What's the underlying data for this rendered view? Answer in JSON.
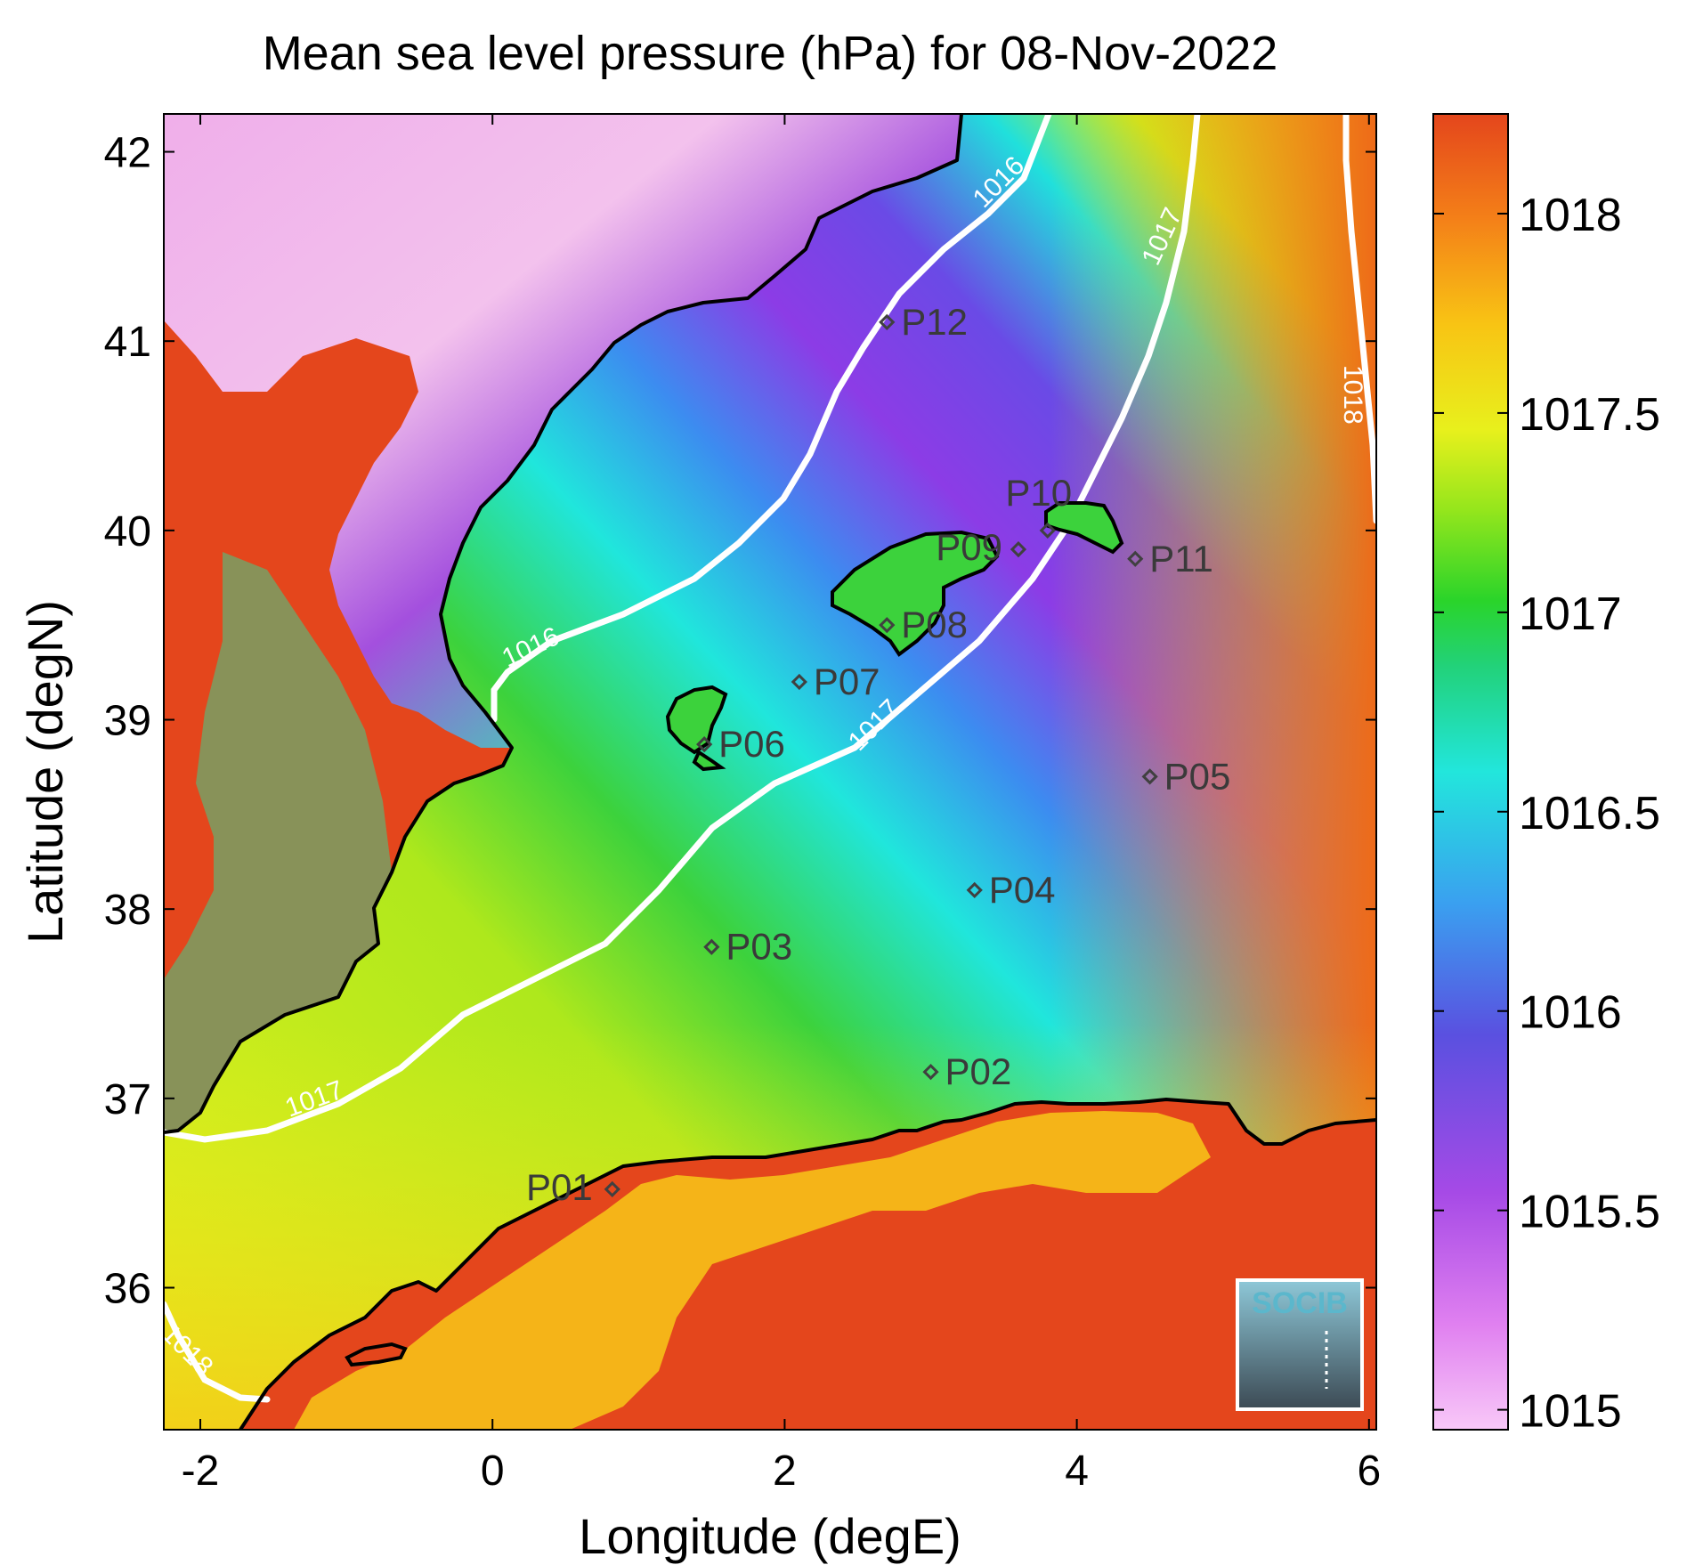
{
  "title": "Mean sea level pressure (hPa) for 08-Nov-2022",
  "xlabel": "Longitude (degE)",
  "ylabel": "Latitude (degN)",
  "x_ticks": [
    "-2",
    "0",
    "2",
    "4",
    "6"
  ],
  "y_ticks": [
    "36",
    "37",
    "38",
    "39",
    "40",
    "41",
    "42"
  ],
  "colorbar_ticks": [
    "1015",
    "1015.5",
    "1016",
    "1016.5",
    "1017",
    "1017.5",
    "1018"
  ],
  "logo_text": "SOCIB",
  "colors": {
    "land_high": "#e44a1c",
    "sea_yellow": "#e8f01c",
    "sea_green": "#3cd23c",
    "sea_cyan": "#20e6dc",
    "sea_blue": "#3c8cf0",
    "sea_purple": "#8c3ce6",
    "low_pink": "#f0b4f5",
    "contour": "#ffffff",
    "coast": "#000000",
    "marker": "#404040",
    "logo": "#5bb7cc"
  },
  "contours": [
    {
      "value": "1016",
      "labels": [
        "1016",
        "1016"
      ]
    },
    {
      "value": "1017",
      "labels": [
        "1017",
        "1017",
        "1017"
      ]
    },
    {
      "value": "1018",
      "labels": [
        "1018",
        "1018"
      ]
    }
  ],
  "chart_data": {
    "type": "scatter",
    "title": "Mean sea level pressure (hPa) for 08-Nov-2022",
    "xlabel": "Longitude (degE)",
    "ylabel": "Latitude (degN)",
    "xlim": [
      -2.25,
      6.05
    ],
    "ylim": [
      35.25,
      42.2
    ],
    "colorbar_range": [
      1014.95,
      1018.25
    ],
    "points": [
      {
        "label": "P01",
        "lon": 0.82,
        "lat": 36.52
      },
      {
        "label": "P02",
        "lon": 3.0,
        "lat": 37.14
      },
      {
        "label": "P03",
        "lon": 1.5,
        "lat": 37.8
      },
      {
        "label": "P04",
        "lon": 3.3,
        "lat": 38.1
      },
      {
        "label": "P05",
        "lon": 4.5,
        "lat": 38.7
      },
      {
        "label": "P06",
        "lon": 1.45,
        "lat": 38.87
      },
      {
        "label": "P07",
        "lon": 2.1,
        "lat": 39.2
      },
      {
        "label": "P08",
        "lon": 2.7,
        "lat": 39.5
      },
      {
        "label": "P09",
        "lon": 3.6,
        "lat": 39.9
      },
      {
        "label": "P10",
        "lon": 3.8,
        "lat": 40.0
      },
      {
        "label": "P11",
        "lon": 4.4,
        "lat": 39.85
      },
      {
        "label": "P12",
        "lon": 2.7,
        "lat": 41.1
      }
    ]
  }
}
